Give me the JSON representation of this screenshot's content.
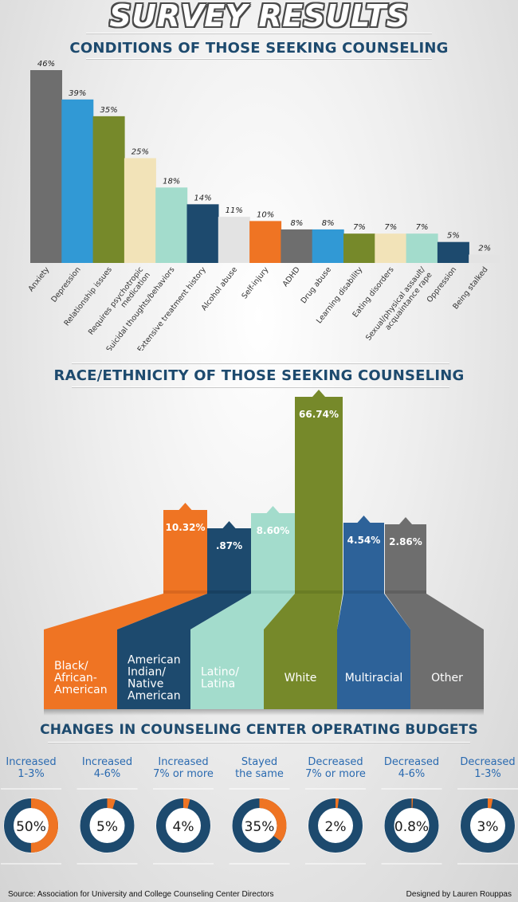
{
  "page": {
    "title": "SURVEY RESULTS",
    "footer_source": "Source: Association for University and College Counseling Center Directors",
    "footer_credit": "Designed by Lauren Rouppas"
  },
  "chart_data": [
    {
      "type": "bar",
      "title": "CONDITIONS OF THOSE SEEKING COUNSELING",
      "categories": [
        "Anxiety",
        "Depression",
        "Relationship issues",
        "Requires psychotropic medication",
        "Suicidal thoughts/behaviors",
        "Extensive treatment history",
        "Alcohol abuse",
        "Self-injury",
        "ADHD",
        "Drug abuse",
        "Learning disability",
        "Eating disorders",
        "Sexual/physical assault/ acquaintance rape",
        "Oppression",
        "Being stalked"
      ],
      "values": [
        46,
        39,
        35,
        25,
        18,
        14,
        11,
        10,
        8,
        8,
        7,
        7,
        7,
        5,
        2
      ],
      "data_labels": [
        "46%",
        "39%",
        "35%",
        "25%",
        "18%",
        "14%",
        "11%",
        "10%",
        "8%",
        "8%",
        "7%",
        "7%",
        "7%",
        "5%",
        "2%"
      ],
      "colors": [
        "#6e6e6e",
        "#3199d5",
        "#76892a",
        "#f2e3b8",
        "#a3dccc",
        "#1d4a6e",
        "#e3e3e3",
        "#ef7423",
        "#6e6e6e",
        "#3199d5",
        "#76892a",
        "#f2e3b8",
        "#a3dccc",
        "#1d4a6e",
        "#e3e3e3"
      ],
      "ylim": [
        0,
        46
      ]
    },
    {
      "type": "bar",
      "title": "RACE/ETHNICITY OF THOSE SEEKING COUNSELING",
      "categories": [
        "Black/ African- American",
        "American Indian/ Native American",
        "Latino/ Latina",
        "White",
        "Multiracial",
        "Other"
      ],
      "values": [
        10.32,
        0.87,
        8.6,
        66.74,
        4.54,
        2.86
      ],
      "data_labels": [
        "10.32%",
        ".87%",
        "8.60%",
        "66.74%",
        "4.54%",
        "2.86%"
      ],
      "colors": [
        "#ef7423",
        "#1d4a6e",
        "#a3dccc",
        "#76892a",
        "#2d6299",
        "#6e6e6e"
      ]
    },
    {
      "type": "pie",
      "title": "CHANGES IN COUNSELING CENTER OPERATING BUDGETS",
      "categories": [
        "Increased 1-3%",
        "Increased 4-6%",
        "Increased 7% or more",
        "Stayed the same",
        "Decreased 7% or more",
        "Decreased 4-6%",
        "Decreased 1-3%"
      ],
      "values": [
        50,
        5,
        4,
        35,
        2,
        0.8,
        3
      ],
      "data_labels": [
        "50%",
        "5%",
        "4%",
        "35%",
        "2%",
        "0.8%",
        "3%"
      ],
      "colors": {
        "highlight": "#ef7423",
        "base": "#1d4a6e"
      }
    }
  ]
}
